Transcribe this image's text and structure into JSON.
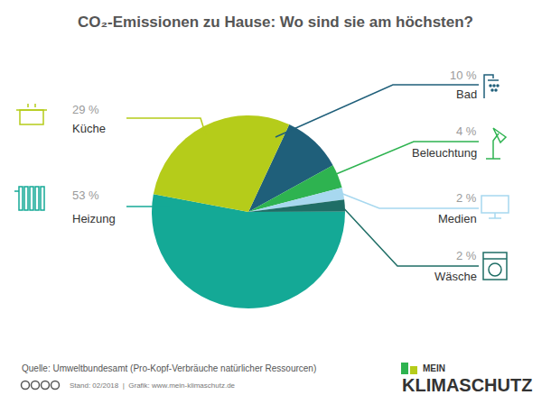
{
  "chart_data": {
    "type": "pie",
    "title": "CO₂-Emissionen zu Hause: Wo sind sie am höchsten?",
    "categories": [
      "Bad",
      "Beleuchtung",
      "Medien",
      "Wäsche",
      "Heizung",
      "Küche"
    ],
    "values": [
      10,
      4,
      2,
      2,
      53,
      29
    ],
    "value_labels": [
      "10 %",
      "4 %",
      "2 %",
      "2 %",
      "53 %",
      "29 %"
    ],
    "colors": [
      "#1f5f7a",
      "#2eb350",
      "#a7d8ef",
      "#1f6e66",
      "#14a996",
      "#b5cc1a"
    ],
    "data_labels": true,
    "source": "Quelle: Umweltbundesamt (Pro-Kopf-Verbräuche natürlicher Ressourcen)",
    "footer": "Stand: 02/2018  |  Grafik: www.mein-klimaschutz.de",
    "logo": [
      "MEIN",
      "KLIMASCHUTZ"
    ]
  }
}
